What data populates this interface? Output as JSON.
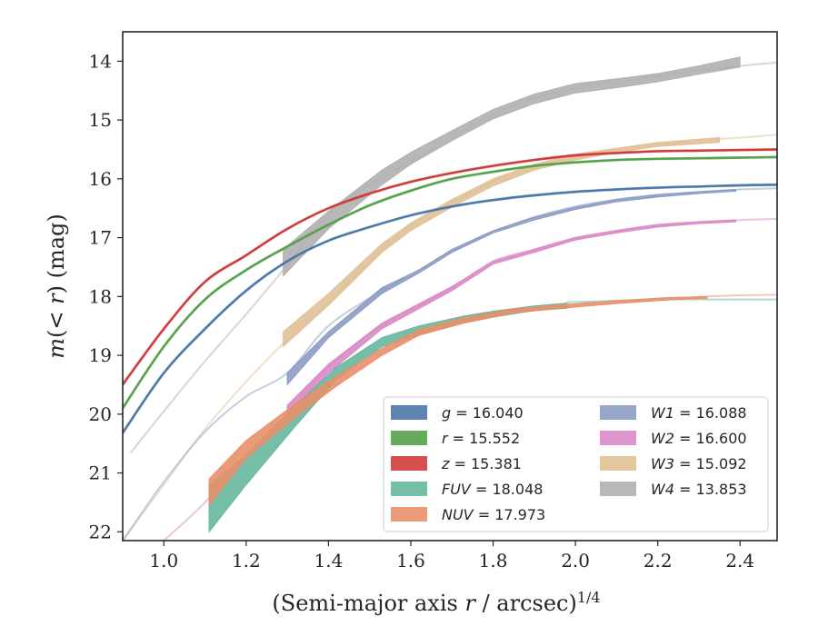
{
  "chart_data": {
    "type": "line",
    "title": "",
    "xlabel": "(Semi-major axis r / arcsec)^1/4",
    "xlabel_parts": {
      "main": "(Semi-major axis ",
      "var": "r",
      "rest": " / arcsec)",
      "sup": "1/4"
    },
    "ylabel": "m(<r) (mag)",
    "ylabel_parts": {
      "var1": "m",
      "mid1": "(",
      "var2": "< r",
      "mid2": ")",
      "rest": " (mag)"
    },
    "xlim": [
      0.9,
      2.49
    ],
    "ylim": [
      22.15,
      13.5
    ],
    "y_inverted": true,
    "x_ticks": [
      1.0,
      1.2,
      1.4,
      1.6,
      1.8,
      2.0,
      2.2,
      2.4
    ],
    "x_tick_labels": [
      "1.0",
      "1.2",
      "1.4",
      "1.6",
      "1.8",
      "2.0",
      "2.2",
      "2.4"
    ],
    "y_ticks": [
      14,
      15,
      16,
      17,
      18,
      19,
      20,
      21,
      22
    ],
    "y_tick_labels": [
      "14",
      "15",
      "16",
      "17",
      "18",
      "19",
      "20",
      "21",
      "22"
    ],
    "grid": false,
    "legend_position": "lower-right",
    "series": [
      {
        "name": "g",
        "value": "16.040",
        "color": "#4c78a8",
        "model": [
          [
            0.9,
            20.32
          ],
          [
            1.0,
            19.3
          ],
          [
            1.1,
            18.55
          ],
          [
            1.2,
            17.9
          ],
          [
            1.3,
            17.4
          ],
          [
            1.4,
            17.05
          ],
          [
            1.5,
            16.82
          ],
          [
            1.6,
            16.62
          ],
          [
            1.7,
            16.47
          ],
          [
            1.8,
            16.36
          ],
          [
            1.9,
            16.28
          ],
          [
            2.0,
            16.22
          ],
          [
            2.1,
            16.18
          ],
          [
            2.2,
            16.15
          ],
          [
            2.3,
            16.13
          ],
          [
            2.4,
            16.11
          ],
          [
            2.49,
            16.1
          ]
        ],
        "band": [],
        "width": 0.05
      },
      {
        "name": "r",
        "value": "15.552",
        "color": "#55a24a",
        "model": [
          [
            0.9,
            19.9
          ],
          [
            1.0,
            18.85
          ],
          [
            1.1,
            18.05
          ],
          [
            1.2,
            17.55
          ],
          [
            1.3,
            17.15
          ],
          [
            1.4,
            16.78
          ],
          [
            1.5,
            16.45
          ],
          [
            1.6,
            16.2
          ],
          [
            1.7,
            16.0
          ],
          [
            1.8,
            15.88
          ],
          [
            1.9,
            15.78
          ],
          [
            2.0,
            15.72
          ],
          [
            2.1,
            15.68
          ],
          [
            2.2,
            15.66
          ],
          [
            2.3,
            15.65
          ],
          [
            2.4,
            15.64
          ],
          [
            2.49,
            15.63
          ]
        ],
        "band": [],
        "width": 0.05
      },
      {
        "name": "z",
        "value": "15.381",
        "color": "#d03c3c",
        "model": [
          [
            0.9,
            19.5
          ],
          [
            1.0,
            18.55
          ],
          [
            1.1,
            17.75
          ],
          [
            1.2,
            17.3
          ],
          [
            1.3,
            16.85
          ],
          [
            1.4,
            16.5
          ],
          [
            1.5,
            16.25
          ],
          [
            1.6,
            16.05
          ],
          [
            1.7,
            15.9
          ],
          [
            1.8,
            15.78
          ],
          [
            1.9,
            15.68
          ],
          [
            2.0,
            15.6
          ],
          [
            2.1,
            15.56
          ],
          [
            2.2,
            15.53
          ],
          [
            2.3,
            15.52
          ],
          [
            2.4,
            15.51
          ],
          [
            2.49,
            15.5
          ]
        ],
        "band": [],
        "width": 0.05
      },
      {
        "name": "FUV",
        "value": "18.048",
        "color": "#66b79f",
        "model": [
          [
            1.98,
            18.1
          ],
          [
            2.1,
            18.07
          ],
          [
            2.2,
            18.05
          ],
          [
            2.3,
            18.05
          ],
          [
            2.4,
            18.05
          ],
          [
            2.49,
            18.05
          ]
        ],
        "band": [
          [
            1.11,
            21.2,
            22.0
          ],
          [
            1.2,
            20.7,
            21.2
          ],
          [
            1.32,
            19.85,
            20.2
          ],
          [
            1.42,
            19.2,
            19.4
          ],
          [
            1.53,
            18.7,
            18.85
          ],
          [
            1.62,
            18.5,
            18.65
          ],
          [
            1.73,
            18.33,
            18.45
          ],
          [
            1.8,
            18.25,
            18.35
          ],
          [
            1.9,
            18.16,
            18.24
          ],
          [
            1.98,
            18.11,
            18.2
          ]
        ],
        "width": 0.05
      },
      {
        "name": "NUV",
        "value": "17.973",
        "color": "#e8906a",
        "model": [
          [
            2.32,
            18.0
          ],
          [
            2.4,
            17.98
          ],
          [
            2.49,
            17.97
          ]
        ],
        "band": [
          [
            1.11,
            21.1,
            21.55
          ],
          [
            1.2,
            20.45,
            20.75
          ],
          [
            1.32,
            19.82,
            20.05
          ],
          [
            1.42,
            19.35,
            19.52
          ],
          [
            1.53,
            18.88,
            19.0
          ],
          [
            1.62,
            18.56,
            18.66
          ],
          [
            1.73,
            18.36,
            18.45
          ],
          [
            1.85,
            18.21,
            18.28
          ],
          [
            1.95,
            18.15,
            18.21
          ],
          [
            2.1,
            18.07,
            18.12
          ],
          [
            2.22,
            18.02,
            18.06
          ],
          [
            2.32,
            18.0,
            18.03
          ]
        ],
        "width": 0.05
      },
      {
        "name": "W1",
        "value": "16.088",
        "color": "#8d9cc4",
        "model": [
          [
            0.9,
            22.15
          ],
          [
            1.0,
            21.15
          ],
          [
            1.1,
            20.3
          ],
          [
            1.2,
            19.7
          ],
          [
            1.3,
            19.3
          ],
          [
            1.4,
            18.5
          ],
          [
            1.53,
            17.9
          ],
          [
            1.62,
            17.55
          ],
          [
            1.7,
            17.22
          ],
          [
            1.8,
            16.9
          ],
          [
            1.9,
            16.65
          ],
          [
            2.0,
            16.47
          ],
          [
            2.1,
            16.35
          ],
          [
            2.2,
            16.27
          ],
          [
            2.3,
            16.22
          ],
          [
            2.4,
            16.18
          ],
          [
            2.49,
            16.16
          ]
        ],
        "band": [
          [
            1.3,
            19.3,
            19.5
          ],
          [
            1.4,
            18.6,
            18.7
          ],
          [
            1.53,
            17.85,
            17.95
          ],
          [
            1.62,
            17.55,
            17.6
          ],
          [
            1.7,
            17.2,
            17.25
          ],
          [
            1.8,
            16.88,
            16.92
          ],
          [
            1.9,
            16.65,
            16.7
          ],
          [
            2.0,
            16.48,
            16.52
          ],
          [
            2.1,
            16.35,
            16.39
          ],
          [
            2.2,
            16.27,
            16.31
          ],
          [
            2.3,
            16.22,
            16.25
          ],
          [
            2.39,
            16.18,
            16.21
          ]
        ],
        "width": 0.05
      },
      {
        "name": "W2",
        "value": "16.600",
        "color": "#d98ac5",
        "model": [
          [
            1.0,
            22.15
          ],
          [
            1.1,
            21.5
          ],
          [
            1.2,
            20.7
          ],
          [
            1.3,
            20.0
          ],
          [
            1.4,
            19.2
          ],
          [
            1.53,
            18.5
          ],
          [
            1.7,
            17.85
          ],
          [
            1.8,
            17.4
          ],
          [
            1.9,
            17.2
          ],
          [
            2.0,
            17.0
          ],
          [
            2.1,
            16.88
          ],
          [
            2.2,
            16.78
          ],
          [
            2.3,
            16.73
          ],
          [
            2.4,
            16.7
          ],
          [
            2.49,
            16.68
          ]
        ],
        "band": [
          [
            1.3,
            19.85,
            20.05
          ],
          [
            1.4,
            19.15,
            19.3
          ],
          [
            1.53,
            18.45,
            18.55
          ],
          [
            1.7,
            17.83,
            17.9
          ],
          [
            1.8,
            17.4,
            17.45
          ],
          [
            1.9,
            17.2,
            17.25
          ],
          [
            2.0,
            17.0,
            17.04
          ],
          [
            2.1,
            16.88,
            16.92
          ],
          [
            2.2,
            16.78,
            16.82
          ],
          [
            2.3,
            16.73,
            16.76
          ],
          [
            2.39,
            16.7,
            16.73
          ]
        ],
        "width": 0.05
      },
      {
        "name": "W3",
        "value": "15.092",
        "color": "#e0c197",
        "model": [
          [
            0.9,
            22.15
          ],
          [
            1.0,
            21.2
          ],
          [
            1.1,
            20.25
          ],
          [
            1.2,
            19.45
          ],
          [
            1.29,
            18.8
          ],
          [
            1.4,
            18.1
          ],
          [
            1.53,
            17.2
          ],
          [
            1.6,
            16.8
          ],
          [
            1.7,
            16.4
          ],
          [
            1.8,
            16.05
          ],
          [
            1.9,
            15.8
          ],
          [
            2.0,
            15.62
          ],
          [
            2.1,
            15.5
          ],
          [
            2.2,
            15.42
          ],
          [
            2.3,
            15.35
          ],
          [
            2.4,
            15.3
          ],
          [
            2.49,
            15.25
          ]
        ],
        "band": [
          [
            1.29,
            18.6,
            18.85
          ],
          [
            1.4,
            17.95,
            18.15
          ],
          [
            1.53,
            17.1,
            17.25
          ],
          [
            1.6,
            16.75,
            16.88
          ],
          [
            1.7,
            16.35,
            16.48
          ],
          [
            1.8,
            16.0,
            16.12
          ],
          [
            1.9,
            15.75,
            15.85
          ],
          [
            2.0,
            15.58,
            15.68
          ],
          [
            2.1,
            15.48,
            15.55
          ],
          [
            2.2,
            15.38,
            15.45
          ],
          [
            2.35,
            15.3,
            15.38
          ]
        ],
        "width": 0.05
      },
      {
        "name": "W4",
        "value": "13.853",
        "color": "#b0b0b0",
        "model": [
          [
            0.92,
            20.65
          ],
          [
            1.0,
            19.95
          ],
          [
            1.1,
            19.1
          ],
          [
            1.2,
            18.3
          ],
          [
            1.29,
            17.55
          ],
          [
            1.4,
            16.6
          ],
          [
            1.5,
            16.1
          ],
          [
            1.6,
            15.7
          ],
          [
            1.7,
            15.3
          ],
          [
            1.8,
            14.9
          ],
          [
            1.9,
            14.63
          ],
          [
            2.0,
            14.45
          ],
          [
            2.1,
            14.35
          ],
          [
            2.2,
            14.25
          ],
          [
            2.3,
            14.15
          ],
          [
            2.4,
            14.08
          ],
          [
            2.49,
            14.02
          ]
        ],
        "band": [
          [
            1.29,
            17.2,
            17.65
          ],
          [
            1.4,
            16.55,
            16.85
          ],
          [
            1.53,
            15.85,
            16.1
          ],
          [
            1.6,
            15.55,
            15.75
          ],
          [
            1.7,
            15.18,
            15.35
          ],
          [
            1.8,
            14.82,
            14.98
          ],
          [
            1.9,
            14.56,
            14.72
          ],
          [
            2.0,
            14.38,
            14.54
          ],
          [
            2.1,
            14.3,
            14.45
          ],
          [
            2.2,
            14.21,
            14.35
          ],
          [
            2.3,
            14.08,
            14.22
          ],
          [
            2.4,
            13.93,
            14.1
          ]
        ],
        "width": 0.05
      }
    ]
  }
}
